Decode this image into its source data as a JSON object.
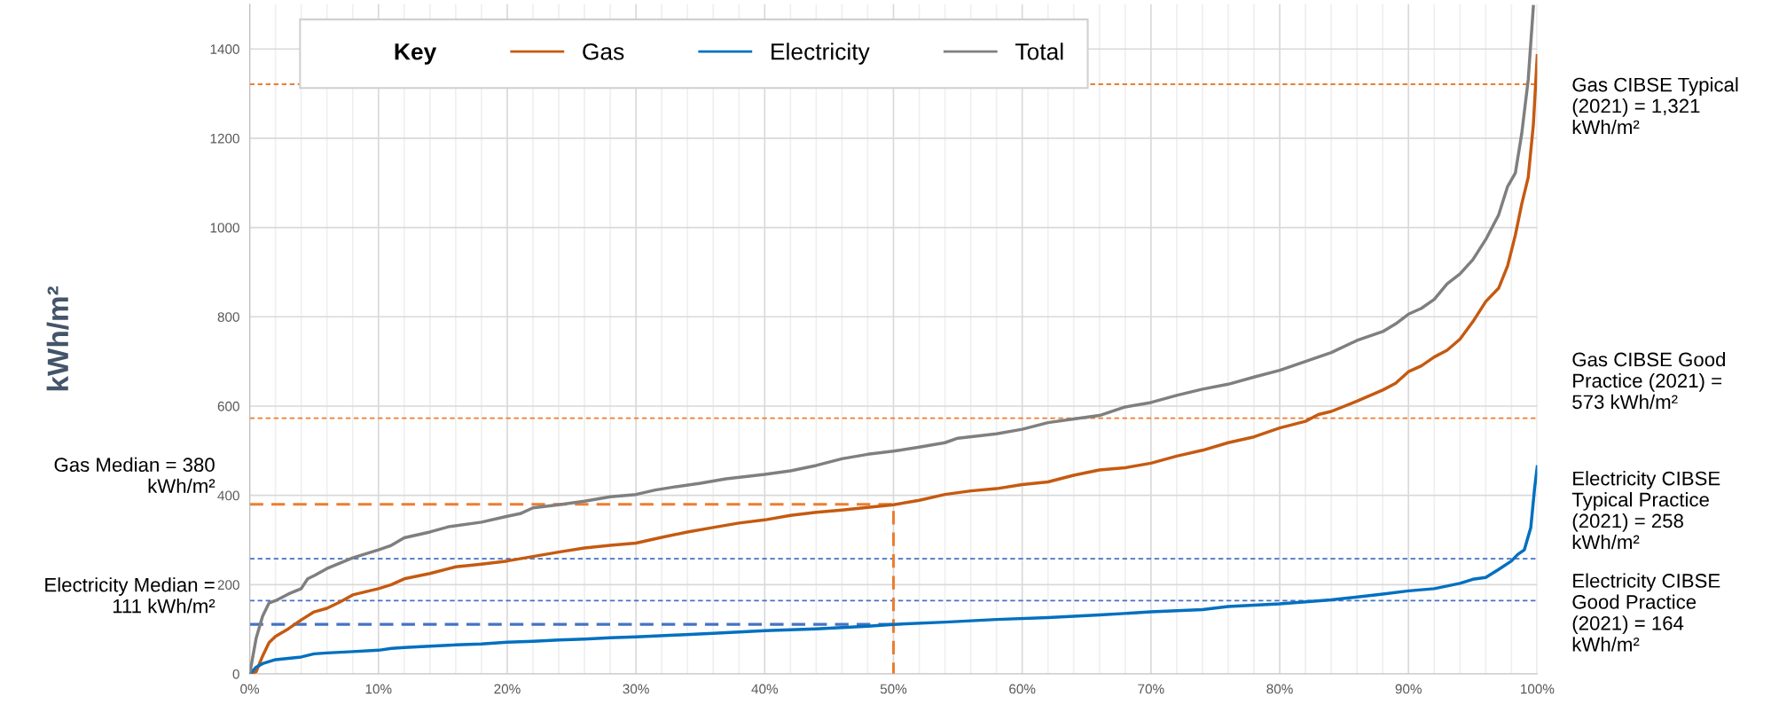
{
  "chart_data": {
    "type": "line",
    "ylabel": "kWh/m²",
    "legend_title": "Key",
    "legend": "top left",
    "grid": true,
    "xlim": [
      0,
      100
    ],
    "ylim": [
      0,
      1500
    ],
    "xticks": [
      {
        "value": 0,
        "label": "0%"
      },
      {
        "value": 2,
        "label": null
      },
      {
        "value": 4,
        "label": null
      },
      {
        "value": 6,
        "label": null
      },
      {
        "value": 8,
        "label": null
      },
      {
        "value": 10,
        "label": "10%"
      },
      {
        "value": 12,
        "label": null
      },
      {
        "value": 14,
        "label": null
      },
      {
        "value": 16,
        "label": null
      },
      {
        "value": 18,
        "label": null
      },
      {
        "value": 20,
        "label": "20%"
      },
      {
        "value": 22,
        "label": null
      },
      {
        "value": 24,
        "label": null
      },
      {
        "value": 26,
        "label": null
      },
      {
        "value": 28,
        "label": null
      },
      {
        "value": 30,
        "label": "30%"
      },
      {
        "value": 32,
        "label": null
      },
      {
        "value": 34,
        "label": null
      },
      {
        "value": 36,
        "label": null
      },
      {
        "value": 38,
        "label": null
      },
      {
        "value": 40,
        "label": "40%"
      },
      {
        "value": 42,
        "label": null
      },
      {
        "value": 44,
        "label": null
      },
      {
        "value": 46,
        "label": null
      },
      {
        "value": 48,
        "label": null
      },
      {
        "value": 50,
        "label": "50%"
      },
      {
        "value": 52,
        "label": null
      },
      {
        "value": 54,
        "label": null
      },
      {
        "value": 56,
        "label": null
      },
      {
        "value": 58,
        "label": null
      },
      {
        "value": 60,
        "label": "60%"
      },
      {
        "value": 62,
        "label": null
      },
      {
        "value": 64,
        "label": null
      },
      {
        "value": 66,
        "label": null
      },
      {
        "value": 68,
        "label": null
      },
      {
        "value": 70,
        "label": "70%"
      },
      {
        "value": 72,
        "label": null
      },
      {
        "value": 74,
        "label": null
      },
      {
        "value": 76,
        "label": null
      },
      {
        "value": 78,
        "label": null
      },
      {
        "value": 80,
        "label": "80%"
      },
      {
        "value": 82,
        "label": null
      },
      {
        "value": 84,
        "label": null
      },
      {
        "value": 86,
        "label": null
      },
      {
        "value": 88,
        "label": null
      },
      {
        "value": 90,
        "label": "90%"
      },
      {
        "value": 92,
        "label": null
      },
      {
        "value": 94,
        "label": null
      },
      {
        "value": 96,
        "label": null
      },
      {
        "value": 98,
        "label": null
      },
      {
        "value": 100,
        "label": "100%"
      }
    ],
    "yticks": [
      0,
      200,
      400,
      600,
      800,
      1000,
      1200,
      1400
    ],
    "line_style": "solid",
    "series": [
      {
        "name": "Gas",
        "color": "#c55a11",
        "x": [
          0,
          0.5,
          1,
          1.5,
          2,
          3,
          4,
          5,
          6,
          7,
          8,
          10,
          11,
          12,
          14,
          16,
          18,
          20,
          22,
          24,
          26,
          28,
          30,
          32,
          34,
          36,
          38,
          40,
          42,
          44,
          46,
          48,
          50,
          52,
          54,
          56,
          58,
          60,
          62,
          64,
          66,
          68,
          70,
          72,
          74,
          76,
          78,
          80,
          82,
          83,
          84,
          86,
          88,
          89,
          90,
          91,
          92,
          93,
          94,
          95,
          96,
          97,
          97.7,
          98.3,
          98.8,
          99.3,
          99.7,
          100
        ],
        "values": [
          0,
          5,
          40,
          70,
          84,
          101,
          121,
          139,
          147,
          161,
          177,
          191,
          200,
          213,
          225,
          240,
          246,
          253,
          263,
          273,
          282,
          288,
          293,
          306,
          318,
          328,
          338,
          345,
          355,
          362,
          367,
          373,
          379,
          389,
          402,
          410,
          415,
          424,
          430,
          445,
          457,
          462,
          472,
          488,
          501,
          518,
          531,
          551,
          566,
          581,
          588,
          611,
          636,
          651,
          677,
          690,
          710,
          725,
          750,
          789,
          834,
          864,
          914,
          983,
          1053,
          1112,
          1231,
          1385
        ]
      },
      {
        "name": "Electricity",
        "color": "#0070c0",
        "x": [
          0,
          0.5,
          1,
          2,
          3,
          4,
          5,
          6,
          8,
          10,
          11,
          12,
          14,
          16,
          18,
          20,
          22,
          24,
          26,
          28,
          30,
          33,
          36,
          40,
          44,
          48,
          50,
          54,
          58,
          62,
          66,
          70,
          74,
          76,
          80,
          84,
          88,
          90,
          92,
          94,
          95,
          96,
          97,
          98,
          98.5,
          99,
          99.5,
          99.8,
          100
        ],
        "values": [
          0,
          15,
          23,
          32,
          35,
          38,
          45,
          47,
          50,
          53,
          57,
          59,
          62,
          65,
          67,
          71,
          73,
          76,
          78,
          81,
          83,
          87,
          91,
          97,
          101,
          107,
          111,
          116,
          122,
          126,
          132,
          139,
          144,
          151,
          157,
          166,
          179,
          186,
          191,
          203,
          212,
          216,
          234,
          253,
          268,
          278,
          328,
          417,
          464
        ]
      },
      {
        "name": "Total",
        "color": "#7f7f7f",
        "x": [
          0,
          0.5,
          1,
          1.5,
          2,
          3,
          4,
          4.5,
          5,
          6,
          8,
          10,
          11,
          12,
          14,
          15.5,
          18,
          20,
          21,
          22,
          24,
          26,
          28,
          30,
          31.5,
          33,
          35,
          37,
          40,
          42,
          44,
          46,
          48,
          50,
          52,
          54,
          55,
          58,
          60,
          62,
          64,
          66,
          68,
          70,
          72,
          74,
          76,
          78,
          80,
          82,
          84,
          86,
          88,
          89,
          90,
          91,
          92,
          93,
          94,
          95,
          96,
          97,
          97.7,
          98.3,
          98.8,
          99.3,
          99.7
        ],
        "values": [
          0,
          80,
          129,
          159,
          164,
          179,
          191,
          213,
          220,
          236,
          260,
          278,
          288,
          305,
          318,
          330,
          340,
          353,
          359,
          372,
          379,
          387,
          397,
          402,
          412,
          419,
          427,
          437,
          447,
          455,
          467,
          482,
          492,
          499,
          508,
          518,
          528,
          538,
          548,
          563,
          571,
          579,
          598,
          608,
          624,
          638,
          649,
          665,
          680,
          700,
          720,
          747,
          767,
          784,
          806,
          819,
          839,
          874,
          896,
          928,
          973,
          1028,
          1092,
          1122,
          1211,
          1331,
          1495
        ]
      },
      {
        "name": "Gas Median = 380 kWh/m²",
        "color": "#ed7d31",
        "line_style": "dashed",
        "x": [
          0,
          50,
          50
        ],
        "values": [
          380,
          380,
          0
        ]
      },
      {
        "name": "Electricity Median = 111 kWh/m²",
        "color": "#4472c4",
        "line_style": "dashed",
        "x": [
          0,
          50
        ],
        "values": [
          111,
          111
        ]
      }
    ],
    "ref_lines": [
      {
        "axis": "y",
        "value": 1321,
        "label": "Gas CIBSE Typical (2021) = 1,321 kWh/m²",
        "color": "#ed7d31",
        "line_style": "dotted"
      },
      {
        "axis": "y",
        "value": 573,
        "label": "Gas CIBSE Good Practice (2021) = 573 kWh/m²",
        "color": "#ed7d31",
        "line_style": "dotted"
      },
      {
        "axis": "y",
        "value": 258,
        "label": "Electricity CIBSE Typical Practice (2021) = 258 kWh/m²",
        "color": "#4472c4",
        "line_style": "dotted"
      },
      {
        "axis": "y",
        "value": 164,
        "label": "Electricity CIBSE Good Practice (2021) = 164 kWh/m²",
        "color": "#4472c4",
        "line_style": "dotted"
      }
    ]
  }
}
